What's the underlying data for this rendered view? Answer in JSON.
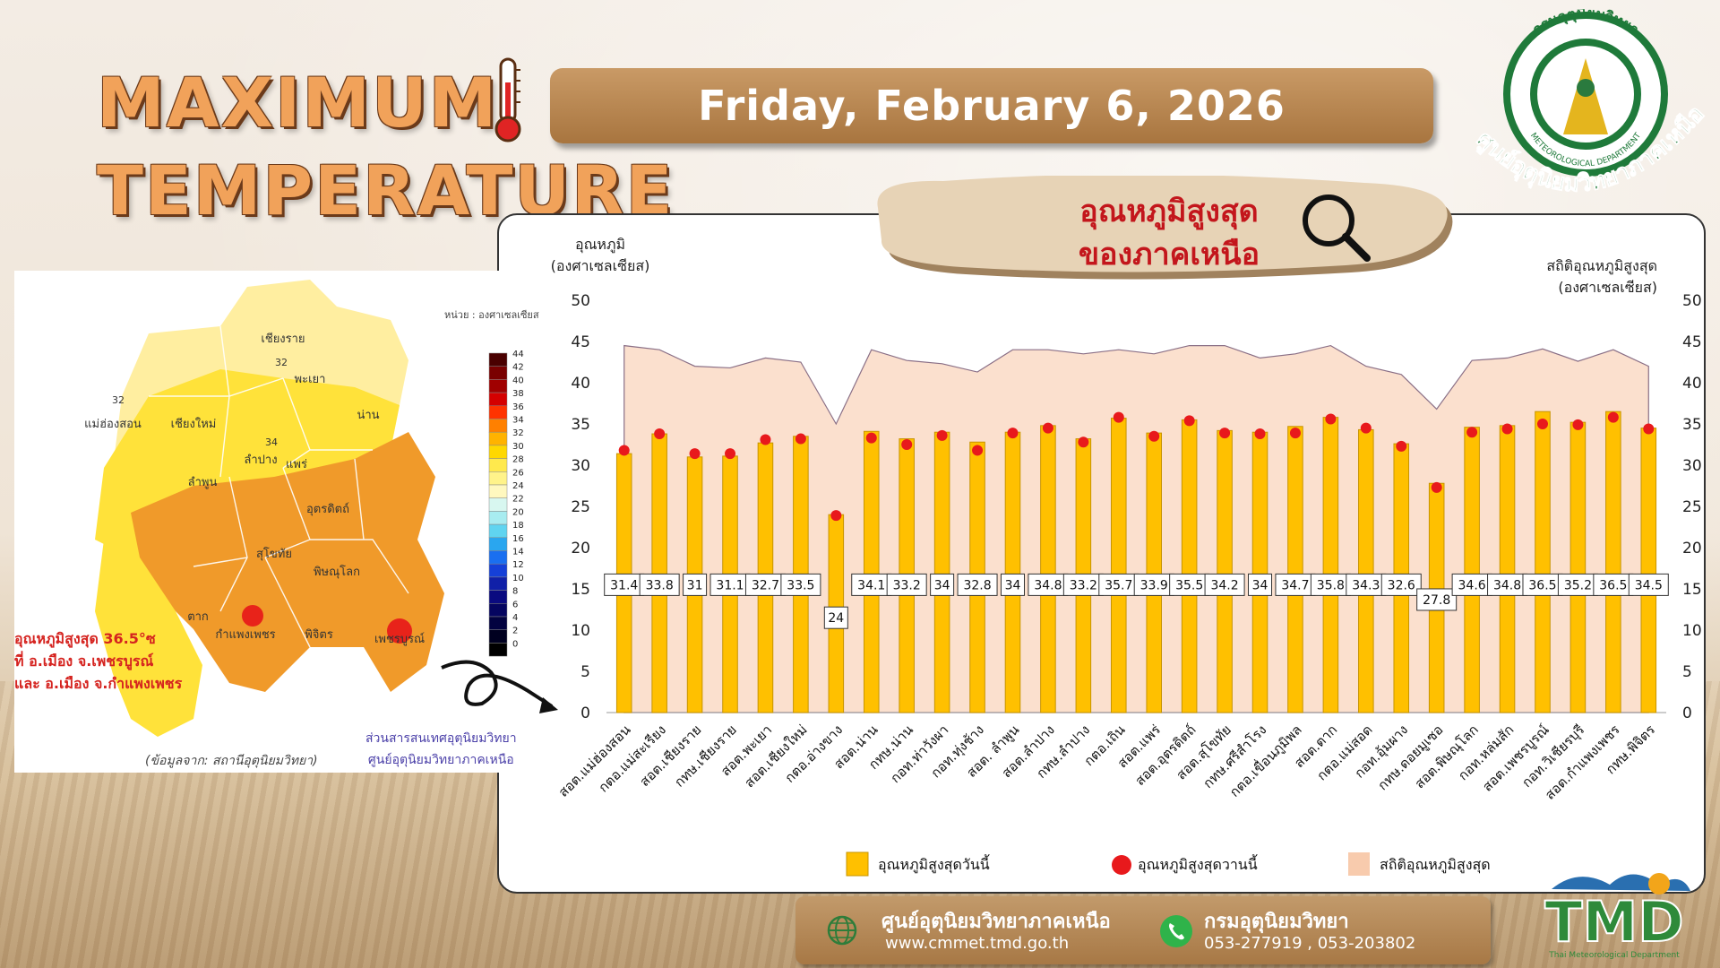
{
  "header": {
    "title_line1": "MAXIMUM",
    "title_line2": "TEMPERATURE",
    "date": "Friday, February 6, 2026"
  },
  "logo": {
    "org_top": "กรมอุตุนิยมวิทยา",
    "org_ring": "METEOROLOGICAL DEPARTMENT",
    "center_name": "ศูนย์อุตุนิยมวิทยาภาคเหนือ"
  },
  "subtitle": {
    "line1": "อุณหภูมิสูงสุด",
    "line2": "ของภาคเหนือ"
  },
  "map": {
    "unit_label": "หน่วย : องศาเซลเซียส",
    "note_lines": [
      "อุณหภูมิสูงสุด 36.5°ซ",
      "ที่ อ.เมือง จ.เพชรบูรณ์",
      "และ อ.เมือง จ.กำแพงเพชร"
    ],
    "source": "(ข้อมูลจาก: สถานีอุตุนิยมวิทยา)",
    "office_lines": [
      "ส่วนสารสนเทศอุตุนิยมวิทยา",
      "ศูนย์อุตุนิยมวิทยาภาคเหนือ"
    ],
    "scale": [
      44,
      42,
      40,
      38,
      36,
      34,
      32,
      30,
      28,
      26,
      24,
      22,
      20,
      18,
      16,
      14,
      12,
      10,
      8,
      6,
      4,
      2,
      0
    ],
    "scale_colors": [
      "#4a0000",
      "#7a0000",
      "#a00000",
      "#d40000",
      "#ff3300",
      "#ff8000",
      "#ffb300",
      "#ffd800",
      "#ffe94d",
      "#fff38a",
      "#fff8bf",
      "#d8f7f0",
      "#a8ecf0",
      "#60d4f0",
      "#2aa6ef",
      "#1a6ff0",
      "#1540d8",
      "#1020a8",
      "#0a0a80",
      "#050560",
      "#020240",
      "#000020",
      "#000000"
    ],
    "provinces": [
      "เชียงราย",
      "พะเยา",
      "น่าน",
      "แม่ฮ่องสอน",
      "เชียงใหม่",
      "ลำปาง",
      "แพร่",
      "ลำพูน",
      "อุตรดิตถ์",
      "สุโขทัย",
      "พิษณุโลก",
      "ตาก",
      "กำแพงเพชร",
      "พิจิตร",
      "เพชรบูรณ์"
    ],
    "isolines": [
      "32",
      "32",
      "34"
    ]
  },
  "chart_data": {
    "type": "bar",
    "left_axis_label": [
      "อุณหภูมิ",
      "(องศาเซลเซียส)"
    ],
    "right_axis_label": [
      "สถิติอุณหภูมิสูงสุด",
      "(องศาเซลเซียส)"
    ],
    "ylim": [
      0,
      50
    ],
    "yticks": [
      0,
      5,
      10,
      15,
      20,
      25,
      30,
      35,
      40,
      45,
      50
    ],
    "categories": [
      "สอต.แม่ฮ่องสอน",
      "กตอ.แม่สะเรียง",
      "สอต.เชียงราย",
      "กทษ.เชียงราย",
      "สอต.พะเยา",
      "สอต.เชียงใหม่",
      "กตอ.อ่างขาง",
      "สอต.น่าน",
      "กทษ.น่าน",
      "กอท.ท่าวังผา",
      "กอท.ทุ่งช้าง",
      "สอต. ลำพูน",
      "สอต.ลำปาง",
      "กทษ.ลำปาง",
      "กตอ.เถิน",
      "สอต.แพร่",
      "สอต.อุตรดิตถ์",
      "สอต.สุโขทัย",
      "กทษ.ศรีสำโรง",
      "กตอ.เขื่อนภูมิพล",
      "สอต.ตาก",
      "กตอ.แม่สอด",
      "กอท.อุ้มผาง",
      "กทษ.ดอยมูเซอ",
      "สอต.พิษณุโลก",
      "กอท.หล่มสัก",
      "สอต.เพชรบูรณ์",
      "กอท.วิเชียรบุรี",
      "สอต.กำแพงเพชร",
      "กทษ.พิจิตร"
    ],
    "series": [
      {
        "name": "อุณหภูมิสูงสุดวันนี้",
        "type": "bar",
        "color": "#ffc000",
        "values": [
          31.4,
          33.8,
          31,
          31.1,
          32.7,
          33.5,
          24,
          34.1,
          33.2,
          34,
          32.8,
          34,
          34.8,
          33.2,
          35.7,
          33.9,
          35.5,
          34.2,
          34,
          34.7,
          35.8,
          34.3,
          32.6,
          27.8,
          34.6,
          34.8,
          36.5,
          35.2,
          36.5,
          34.5
        ]
      },
      {
        "name": "อุณหภูมิสูงสุดวานนี้",
        "type": "scatter",
        "color": "#e8191c",
        "values": [
          31.8,
          33.8,
          31.4,
          31.4,
          33.1,
          33.2,
          23.9,
          33.3,
          32.5,
          33.6,
          31.8,
          33.9,
          34.5,
          32.8,
          35.8,
          33.5,
          35.4,
          33.9,
          33.8,
          33.9,
          35.6,
          34.5,
          32.3,
          27.3,
          34.0,
          34.4,
          35.0,
          34.9,
          35.8,
          34.4
        ]
      },
      {
        "name": "สถิติอุณหภูมิสูงสุด",
        "type": "area",
        "color": "#f8cbad",
        "values": [
          44.5,
          44.0,
          42.0,
          41.8,
          43.0,
          42.5,
          35.0,
          44.0,
          42.7,
          42.3,
          41.3,
          44.0,
          44.0,
          43.5,
          44.0,
          43.5,
          44.5,
          44.5,
          43.0,
          43.5,
          44.5,
          42.0,
          41.0,
          36.8,
          42.7,
          43.0,
          44.1,
          42.6,
          44.0,
          42.0
        ]
      }
    ]
  },
  "footer": {
    "center": "ศูนย์อุตุนิยมวิทยาภาคเหนือ",
    "website": "www.cmmet.tmd.go.th",
    "department": "กรมอุตุนิยมวิทยา",
    "phones": "053-277919 , 053-203802",
    "tmd_logo": "TMD",
    "tmd_sub": "Thai Meteorological Department"
  }
}
